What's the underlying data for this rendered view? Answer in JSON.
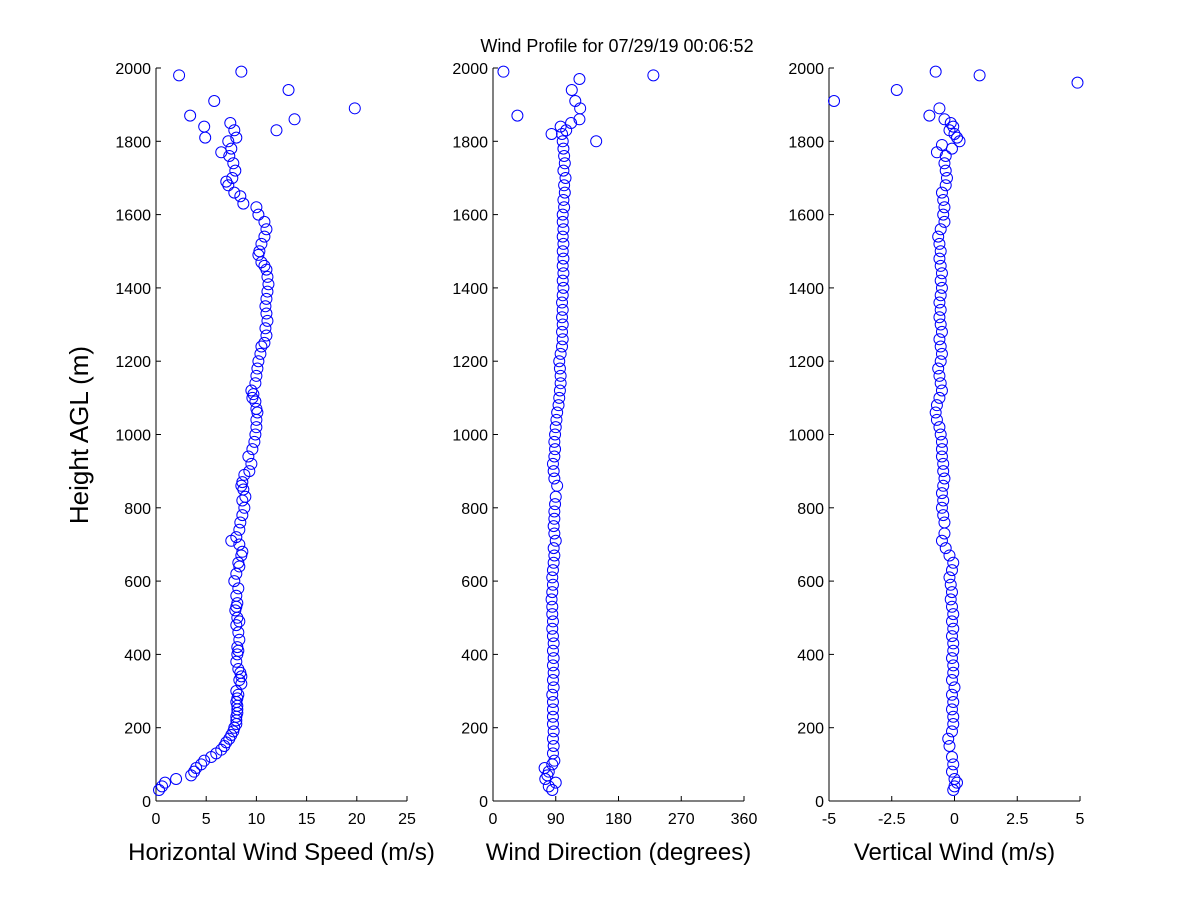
{
  "title": "Wind Profile for  07/29/19 00:06:52",
  "ylabel": "Height AGL (m)",
  "marker_color": "#0000ff",
  "chart_data": [
    {
      "type": "scatter",
      "xlabel": "Horizontal Wind Speed (m/s)",
      "xlim": [
        0,
        25
      ],
      "xticks": [
        0,
        5,
        10,
        15,
        20,
        25
      ],
      "ylim": [
        0,
        2000
      ],
      "yticks": [
        0,
        200,
        400,
        600,
        800,
        1000,
        1200,
        1400,
        1600,
        1800,
        2000
      ],
      "points": [
        [
          0.3,
          30
        ],
        [
          0.6,
          40
        ],
        [
          0.9,
          50
        ],
        [
          2.0,
          60
        ],
        [
          3.5,
          70
        ],
        [
          3.8,
          80
        ],
        [
          4.0,
          90
        ],
        [
          4.5,
          100
        ],
        [
          4.8,
          110
        ],
        [
          5.5,
          120
        ],
        [
          6.0,
          130
        ],
        [
          6.5,
          140
        ],
        [
          6.8,
          150
        ],
        [
          7.0,
          160
        ],
        [
          7.3,
          170
        ],
        [
          7.5,
          180
        ],
        [
          7.7,
          190
        ],
        [
          7.8,
          200
        ],
        [
          8.0,
          210
        ],
        [
          8.0,
          220
        ],
        [
          8.0,
          230
        ],
        [
          8.1,
          240
        ],
        [
          8.1,
          250
        ],
        [
          8.1,
          260
        ],
        [
          8.0,
          270
        ],
        [
          8.1,
          280
        ],
        [
          8.2,
          290
        ],
        [
          8.0,
          300
        ],
        [
          8.5,
          320
        ],
        [
          8.3,
          330
        ],
        [
          8.5,
          340
        ],
        [
          8.4,
          350
        ],
        [
          8.2,
          360
        ],
        [
          8.0,
          380
        ],
        [
          8.1,
          400
        ],
        [
          8.2,
          410
        ],
        [
          8.1,
          420
        ],
        [
          8.3,
          440
        ],
        [
          8.2,
          460
        ],
        [
          8.0,
          480
        ],
        [
          8.3,
          490
        ],
        [
          8.1,
          500
        ],
        [
          7.9,
          520
        ],
        [
          8.0,
          530
        ],
        [
          8.1,
          540
        ],
        [
          8.0,
          560
        ],
        [
          8.2,
          580
        ],
        [
          7.8,
          600
        ],
        [
          8.0,
          620
        ],
        [
          8.3,
          640
        ],
        [
          8.2,
          650
        ],
        [
          8.5,
          670
        ],
        [
          8.6,
          680
        ],
        [
          8.3,
          700
        ],
        [
          7.5,
          710
        ],
        [
          8.0,
          720
        ],
        [
          8.3,
          740
        ],
        [
          8.4,
          760
        ],
        [
          8.6,
          780
        ],
        [
          8.8,
          800
        ],
        [
          8.6,
          820
        ],
        [
          8.9,
          830
        ],
        [
          8.7,
          850
        ],
        [
          8.5,
          860
        ],
        [
          8.6,
          870
        ],
        [
          8.8,
          890
        ],
        [
          9.3,
          900
        ],
        [
          9.5,
          920
        ],
        [
          9.2,
          940
        ],
        [
          9.6,
          960
        ],
        [
          9.8,
          980
        ],
        [
          9.9,
          1000
        ],
        [
          10.0,
          1020
        ],
        [
          10.0,
          1040
        ],
        [
          10.1,
          1060
        ],
        [
          10.0,
          1070
        ],
        [
          9.9,
          1090
        ],
        [
          9.6,
          1100
        ],
        [
          9.7,
          1110
        ],
        [
          9.5,
          1120
        ],
        [
          9.9,
          1140
        ],
        [
          10.0,
          1160
        ],
        [
          10.1,
          1180
        ],
        [
          10.2,
          1200
        ],
        [
          10.4,
          1220
        ],
        [
          10.5,
          1240
        ],
        [
          10.8,
          1250
        ],
        [
          11.0,
          1270
        ],
        [
          10.9,
          1290
        ],
        [
          11.1,
          1310
        ],
        [
          11.0,
          1330
        ],
        [
          10.9,
          1350
        ],
        [
          11.0,
          1370
        ],
        [
          11.1,
          1390
        ],
        [
          11.2,
          1410
        ],
        [
          11.1,
          1430
        ],
        [
          11.0,
          1450
        ],
        [
          10.8,
          1460
        ],
        [
          10.5,
          1470
        ],
        [
          10.2,
          1490
        ],
        [
          10.3,
          1500
        ],
        [
          10.5,
          1520
        ],
        [
          10.8,
          1540
        ],
        [
          11.0,
          1560
        ],
        [
          10.8,
          1580
        ],
        [
          10.2,
          1600
        ],
        [
          10.0,
          1620
        ],
        [
          8.7,
          1630
        ],
        [
          8.4,
          1650
        ],
        [
          7.8,
          1660
        ],
        [
          7.2,
          1680
        ],
        [
          7.0,
          1690
        ],
        [
          7.6,
          1700
        ],
        [
          7.9,
          1720
        ],
        [
          7.7,
          1740
        ],
        [
          7.3,
          1760
        ],
        [
          6.5,
          1770
        ],
        [
          7.5,
          1780
        ],
        [
          7.2,
          1800
        ],
        [
          8.0,
          1810
        ],
        [
          4.9,
          1810
        ],
        [
          7.8,
          1830
        ],
        [
          12.0,
          1830
        ],
        [
          4.8,
          1840
        ],
        [
          7.4,
          1850
        ],
        [
          13.8,
          1860
        ],
        [
          3.4,
          1870
        ],
        [
          19.8,
          1890
        ],
        [
          5.8,
          1910
        ],
        [
          13.2,
          1940
        ],
        [
          2.3,
          1980
        ],
        [
          8.5,
          1990
        ]
      ]
    },
    {
      "type": "scatter",
      "xlabel": "Wind Direction (degrees)",
      "xlim": [
        0,
        360
      ],
      "xticks": [
        0,
        90,
        180,
        270,
        360
      ],
      "ylim": [
        0,
        2000
      ],
      "yticks": [
        0,
        200,
        400,
        600,
        800,
        1000,
        1200,
        1400,
        1600,
        1800,
        2000
      ],
      "points": [
        [
          85,
          30
        ],
        [
          80,
          40
        ],
        [
          90,
          50
        ],
        [
          75,
          60
        ],
        [
          78,
          70
        ],
        [
          80,
          80
        ],
        [
          74,
          90
        ],
        [
          85,
          100
        ],
        [
          88,
          110
        ],
        [
          86,
          130
        ],
        [
          87,
          150
        ],
        [
          86,
          170
        ],
        [
          87,
          190
        ],
        [
          86,
          210
        ],
        [
          86,
          230
        ],
        [
          86,
          250
        ],
        [
          86,
          270
        ],
        [
          85,
          290
        ],
        [
          87,
          310
        ],
        [
          86,
          330
        ],
        [
          87,
          350
        ],
        [
          86,
          370
        ],
        [
          87,
          390
        ],
        [
          86,
          410
        ],
        [
          87,
          430
        ],
        [
          86,
          450
        ],
        [
          85,
          470
        ],
        [
          86,
          490
        ],
        [
          85,
          510
        ],
        [
          85,
          530
        ],
        [
          84,
          550
        ],
        [
          85,
          570
        ],
        [
          86,
          590
        ],
        [
          85,
          610
        ],
        [
          86,
          630
        ],
        [
          87,
          650
        ],
        [
          88,
          670
        ],
        [
          87,
          690
        ],
        [
          90,
          710
        ],
        [
          88,
          730
        ],
        [
          87,
          750
        ],
        [
          88,
          770
        ],
        [
          88,
          790
        ],
        [
          89,
          810
        ],
        [
          90,
          830
        ],
        [
          92,
          860
        ],
        [
          88,
          880
        ],
        [
          87,
          900
        ],
        [
          86,
          920
        ],
        [
          88,
          940
        ],
        [
          89,
          960
        ],
        [
          88,
          980
        ],
        [
          89,
          1000
        ],
        [
          90,
          1020
        ],
        [
          91,
          1040
        ],
        [
          92,
          1060
        ],
        [
          94,
          1080
        ],
        [
          95,
          1100
        ],
        [
          96,
          1120
        ],
        [
          97,
          1140
        ],
        [
          97,
          1160
        ],
        [
          96,
          1180
        ],
        [
          95,
          1200
        ],
        [
          97,
          1220
        ],
        [
          99,
          1240
        ],
        [
          100,
          1260
        ],
        [
          99,
          1280
        ],
        [
          100,
          1300
        ],
        [
          99,
          1320
        ],
        [
          100,
          1340
        ],
        [
          99,
          1360
        ],
        [
          100,
          1380
        ],
        [
          101,
          1400
        ],
        [
          100,
          1420
        ],
        [
          101,
          1440
        ],
        [
          100,
          1460
        ],
        [
          101,
          1480
        ],
        [
          100,
          1500
        ],
        [
          101,
          1520
        ],
        [
          100,
          1540
        ],
        [
          101,
          1560
        ],
        [
          100,
          1580
        ],
        [
          100,
          1600
        ],
        [
          102,
          1620
        ],
        [
          101,
          1640
        ],
        [
          103,
          1660
        ],
        [
          102,
          1680
        ],
        [
          104,
          1700
        ],
        [
          101,
          1720
        ],
        [
          103,
          1740
        ],
        [
          102,
          1760
        ],
        [
          101,
          1780
        ],
        [
          100,
          1800
        ],
        [
          148,
          1800
        ],
        [
          99,
          1820
        ],
        [
          84,
          1820
        ],
        [
          105,
          1830
        ],
        [
          97,
          1840
        ],
        [
          112,
          1850
        ],
        [
          124,
          1860
        ],
        [
          35,
          1870
        ],
        [
          125,
          1890
        ],
        [
          118,
          1910
        ],
        [
          113,
          1940
        ],
        [
          124,
          1970
        ],
        [
          230,
          1980
        ],
        [
          15,
          1990
        ]
      ]
    },
    {
      "type": "scatter",
      "xlabel": "Vertical Wind (m/s)",
      "xlim": [
        -5,
        5
      ],
      "xticks": [
        -5,
        -2.5,
        0,
        2.5,
        5
      ],
      "xtick_labels": [
        "-5",
        "-2.5",
        "0",
        "2.5",
        "5"
      ],
      "ylim": [
        0,
        2000
      ],
      "yticks": [
        0,
        200,
        400,
        600,
        800,
        1000,
        1200,
        1400,
        1600,
        1800,
        2000
      ],
      "points": [
        [
          -0.05,
          30
        ],
        [
          0.0,
          40
        ],
        [
          0.1,
          50
        ],
        [
          0.0,
          60
        ],
        [
          -0.1,
          80
        ],
        [
          -0.05,
          100
        ],
        [
          -0.1,
          120
        ],
        [
          -0.2,
          150
        ],
        [
          -0.25,
          170
        ],
        [
          -0.1,
          190
        ],
        [
          -0.05,
          210
        ],
        [
          -0.05,
          230
        ],
        [
          -0.1,
          250
        ],
        [
          -0.05,
          270
        ],
        [
          -0.1,
          290
        ],
        [
          0.0,
          310
        ],
        [
          -0.1,
          330
        ],
        [
          -0.05,
          350
        ],
        [
          -0.05,
          370
        ],
        [
          -0.1,
          390
        ],
        [
          -0.05,
          410
        ],
        [
          -0.05,
          430
        ],
        [
          -0.1,
          450
        ],
        [
          -0.05,
          470
        ],
        [
          -0.1,
          490
        ],
        [
          -0.05,
          510
        ],
        [
          -0.1,
          530
        ],
        [
          -0.15,
          550
        ],
        [
          -0.1,
          570
        ],
        [
          -0.15,
          590
        ],
        [
          -0.2,
          610
        ],
        [
          -0.1,
          630
        ],
        [
          -0.05,
          650
        ],
        [
          -0.2,
          670
        ],
        [
          -0.35,
          690
        ],
        [
          -0.5,
          710
        ],
        [
          -0.4,
          730
        ],
        [
          -0.4,
          760
        ],
        [
          -0.45,
          780
        ],
        [
          -0.5,
          800
        ],
        [
          -0.45,
          820
        ],
        [
          -0.5,
          840
        ],
        [
          -0.45,
          860
        ],
        [
          -0.4,
          880
        ],
        [
          -0.45,
          900
        ],
        [
          -0.45,
          920
        ],
        [
          -0.5,
          940
        ],
        [
          -0.5,
          960
        ],
        [
          -0.5,
          980
        ],
        [
          -0.55,
          1000
        ],
        [
          -0.6,
          1020
        ],
        [
          -0.7,
          1040
        ],
        [
          -0.75,
          1060
        ],
        [
          -0.7,
          1080
        ],
        [
          -0.6,
          1100
        ],
        [
          -0.5,
          1120
        ],
        [
          -0.55,
          1140
        ],
        [
          -0.6,
          1160
        ],
        [
          -0.65,
          1180
        ],
        [
          -0.55,
          1200
        ],
        [
          -0.5,
          1220
        ],
        [
          -0.55,
          1240
        ],
        [
          -0.6,
          1260
        ],
        [
          -0.5,
          1280
        ],
        [
          -0.55,
          1300
        ],
        [
          -0.6,
          1320
        ],
        [
          -0.55,
          1340
        ],
        [
          -0.6,
          1360
        ],
        [
          -0.55,
          1380
        ],
        [
          -0.5,
          1400
        ],
        [
          -0.55,
          1420
        ],
        [
          -0.5,
          1440
        ],
        [
          -0.55,
          1460
        ],
        [
          -0.6,
          1480
        ],
        [
          -0.55,
          1500
        ],
        [
          -0.6,
          1520
        ],
        [
          -0.65,
          1540
        ],
        [
          -0.55,
          1560
        ],
        [
          -0.4,
          1580
        ],
        [
          -0.45,
          1600
        ],
        [
          -0.4,
          1620
        ],
        [
          -0.45,
          1640
        ],
        [
          -0.5,
          1660
        ],
        [
          -0.35,
          1680
        ],
        [
          -0.3,
          1700
        ],
        [
          -0.35,
          1720
        ],
        [
          -0.4,
          1740
        ],
        [
          -0.35,
          1760
        ],
        [
          -0.7,
          1770
        ],
        [
          -0.1,
          1780
        ],
        [
          -0.5,
          1790
        ],
        [
          0.2,
          1800
        ],
        [
          0.1,
          1810
        ],
        [
          0.0,
          1820
        ],
        [
          -0.2,
          1830
        ],
        [
          -0.05,
          1840
        ],
        [
          -0.15,
          1850
        ],
        [
          -0.4,
          1860
        ],
        [
          -1.0,
          1870
        ],
        [
          -0.6,
          1890
        ],
        [
          -4.8,
          1910
        ],
        [
          -2.3,
          1940
        ],
        [
          4.9,
          1960
        ],
        [
          1.0,
          1980
        ],
        [
          -0.75,
          1990
        ]
      ]
    }
  ]
}
